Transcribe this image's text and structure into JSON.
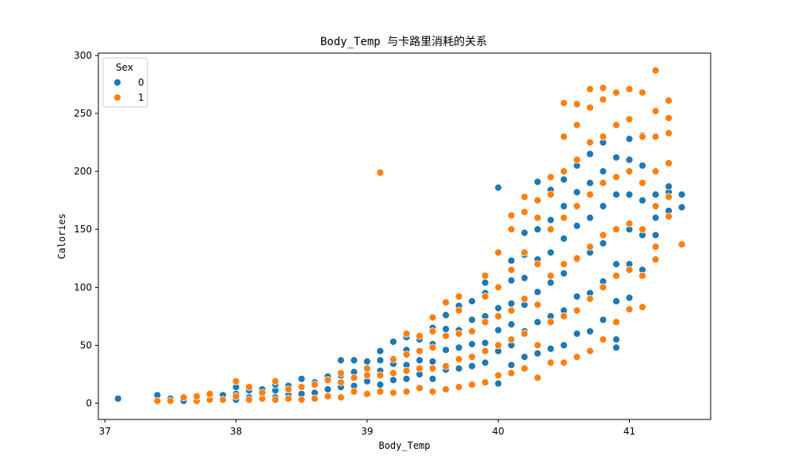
{
  "chart_data": {
    "type": "scatter",
    "title": "Body_Temp 与卡路里消耗的关系",
    "xlabel": "Body_Temp",
    "ylabel": "Calories",
    "xlim": [
      36.95,
      41.62
    ],
    "ylim": [
      -14,
      302
    ],
    "xticks": [
      "37",
      "38",
      "39",
      "40",
      "41"
    ],
    "yticks": [
      "0",
      "50",
      "100",
      "150",
      "200",
      "250",
      "300"
    ],
    "grid": false,
    "legend": {
      "title": "Sex",
      "placement": "top-left"
    },
    "series": [
      {
        "name": "0",
        "color": "#1f77b4",
        "points": [
          [
            37.1,
            4
          ],
          [
            37.4,
            7
          ],
          [
            37.5,
            4
          ],
          [
            37.6,
            2
          ],
          [
            37.7,
            6
          ],
          [
            37.8,
            4
          ],
          [
            37.9,
            7
          ],
          [
            38.0,
            3
          ],
          [
            38.0,
            8
          ],
          [
            38.0,
            14
          ],
          [
            38.1,
            5
          ],
          [
            38.1,
            11
          ],
          [
            38.2,
            6
          ],
          [
            38.2,
            12
          ],
          [
            38.3,
            5
          ],
          [
            38.3,
            11
          ],
          [
            38.3,
            16
          ],
          [
            38.4,
            7
          ],
          [
            38.4,
            15
          ],
          [
            38.5,
            8
          ],
          [
            38.5,
            21
          ],
          [
            38.6,
            9
          ],
          [
            38.6,
            18
          ],
          [
            38.7,
            12
          ],
          [
            38.7,
            23
          ],
          [
            38.8,
            14
          ],
          [
            38.8,
            24
          ],
          [
            38.8,
            37
          ],
          [
            38.9,
            15
          ],
          [
            38.9,
            27
          ],
          [
            38.9,
            37
          ],
          [
            39.0,
            19
          ],
          [
            39.0,
            29
          ],
          [
            39.0,
            36
          ],
          [
            39.1,
            16
          ],
          [
            39.1,
            28
          ],
          [
            39.1,
            37
          ],
          [
            39.1,
            45
          ],
          [
            39.2,
            20
          ],
          [
            39.2,
            34
          ],
          [
            39.2,
            53
          ],
          [
            39.3,
            21
          ],
          [
            39.3,
            33
          ],
          [
            39.3,
            46
          ],
          [
            39.3,
            57
          ],
          [
            39.4,
            25
          ],
          [
            39.4,
            37
          ],
          [
            39.4,
            55
          ],
          [
            39.5,
            21
          ],
          [
            39.5,
            36
          ],
          [
            39.5,
            51
          ],
          [
            39.5,
            65
          ],
          [
            39.6,
            29
          ],
          [
            39.6,
            46
          ],
          [
            39.6,
            64
          ],
          [
            39.6,
            76
          ],
          [
            39.7,
            30
          ],
          [
            39.7,
            48
          ],
          [
            39.7,
            63
          ],
          [
            39.7,
            84
          ],
          [
            39.8,
            32
          ],
          [
            39.8,
            51
          ],
          [
            39.8,
            72
          ],
          [
            39.8,
            88
          ],
          [
            39.9,
            35
          ],
          [
            39.9,
            52
          ],
          [
            39.9,
            75
          ],
          [
            39.9,
            95
          ],
          [
            39.9,
            104
          ],
          [
            40.0,
            17
          ],
          [
            40.0,
            45
          ],
          [
            40.0,
            63
          ],
          [
            40.0,
            82
          ],
          [
            40.0,
            186
          ],
          [
            40.1,
            33
          ],
          [
            40.1,
            50
          ],
          [
            40.1,
            68
          ],
          [
            40.1,
            86
          ],
          [
            40.1,
            106
          ],
          [
            40.1,
            123
          ],
          [
            40.2,
            40
          ],
          [
            40.2,
            62
          ],
          [
            40.2,
            85
          ],
          [
            40.2,
            108
          ],
          [
            40.2,
            128
          ],
          [
            40.2,
            147
          ],
          [
            40.3,
            43
          ],
          [
            40.3,
            70
          ],
          [
            40.3,
            96
          ],
          [
            40.3,
            124
          ],
          [
            40.3,
            150
          ],
          [
            40.3,
            191
          ],
          [
            40.4,
            47
          ],
          [
            40.4,
            75
          ],
          [
            40.4,
            104
          ],
          [
            40.4,
            130
          ],
          [
            40.4,
            158
          ],
          [
            40.4,
            184
          ],
          [
            40.5,
            50
          ],
          [
            40.5,
            80
          ],
          [
            40.5,
            112
          ],
          [
            40.5,
            142
          ],
          [
            40.5,
            170
          ],
          [
            40.5,
            193
          ],
          [
            40.6,
            60
          ],
          [
            40.6,
            92
          ],
          [
            40.6,
            124
          ],
          [
            40.6,
            153
          ],
          [
            40.6,
            182
          ],
          [
            40.6,
            205
          ],
          [
            40.7,
            62
          ],
          [
            40.7,
            95
          ],
          [
            40.7,
            130
          ],
          [
            40.7,
            160
          ],
          [
            40.7,
            190
          ],
          [
            40.7,
            215
          ],
          [
            40.8,
            72
          ],
          [
            40.8,
            105
          ],
          [
            40.8,
            138
          ],
          [
            40.8,
            170
          ],
          [
            40.8,
            200
          ],
          [
            40.8,
            225
          ],
          [
            40.9,
            48
          ],
          [
            40.9,
            55
          ],
          [
            40.9,
            88
          ],
          [
            40.9,
            120
          ],
          [
            40.9,
            150
          ],
          [
            40.9,
            180
          ],
          [
            40.9,
            212
          ],
          [
            41.0,
            91
          ],
          [
            41.0,
            120
          ],
          [
            41.0,
            150
          ],
          [
            41.0,
            180
          ],
          [
            41.0,
            210
          ],
          [
            41.0,
            228
          ],
          [
            41.1,
            115
          ],
          [
            41.1,
            145
          ],
          [
            41.1,
            175
          ],
          [
            41.1,
            205
          ],
          [
            41.1,
            231
          ],
          [
            41.2,
            145
          ],
          [
            41.2,
            160
          ],
          [
            41.2,
            180
          ],
          [
            41.2,
            200
          ],
          [
            41.3,
            166
          ],
          [
            41.3,
            182
          ],
          [
            41.3,
            187
          ],
          [
            41.4,
            169
          ],
          [
            41.4,
            180
          ]
        ]
      },
      {
        "name": "1",
        "color": "#ff7f0e",
        "points": [
          [
            37.4,
            2
          ],
          [
            37.5,
            2
          ],
          [
            37.6,
            5
          ],
          [
            37.7,
            2
          ],
          [
            37.7,
            6
          ],
          [
            37.8,
            3
          ],
          [
            37.8,
            8
          ],
          [
            37.9,
            3
          ],
          [
            38.0,
            6
          ],
          [
            38.0,
            19
          ],
          [
            38.1,
            3
          ],
          [
            38.1,
            14
          ],
          [
            38.2,
            4
          ],
          [
            38.2,
            9
          ],
          [
            38.3,
            3
          ],
          [
            38.3,
            19
          ],
          [
            38.4,
            4
          ],
          [
            38.4,
            12
          ],
          [
            38.5,
            3
          ],
          [
            38.5,
            14
          ],
          [
            38.6,
            4
          ],
          [
            38.6,
            16
          ],
          [
            38.7,
            6
          ],
          [
            38.7,
            20
          ],
          [
            38.8,
            5
          ],
          [
            38.8,
            18
          ],
          [
            38.8,
            26
          ],
          [
            38.9,
            10
          ],
          [
            38.9,
            22
          ],
          [
            39.0,
            8
          ],
          [
            39.0,
            24
          ],
          [
            39.0,
            30
          ],
          [
            39.1,
            10
          ],
          [
            39.1,
            24
          ],
          [
            39.1,
            199
          ],
          [
            39.2,
            9
          ],
          [
            39.2,
            26
          ],
          [
            39.2,
            38
          ],
          [
            39.3,
            10
          ],
          [
            39.3,
            28
          ],
          [
            39.3,
            42
          ],
          [
            39.3,
            60
          ],
          [
            39.4,
            13
          ],
          [
            39.4,
            30
          ],
          [
            39.4,
            45
          ],
          [
            39.4,
            58
          ],
          [
            39.5,
            10
          ],
          [
            39.5,
            30
          ],
          [
            39.5,
            48
          ],
          [
            39.5,
            62
          ],
          [
            39.5,
            74
          ],
          [
            39.6,
            12
          ],
          [
            39.6,
            32
          ],
          [
            39.6,
            58
          ],
          [
            39.6,
            87
          ],
          [
            39.7,
            14
          ],
          [
            39.7,
            38
          ],
          [
            39.7,
            60
          ],
          [
            39.7,
            80
          ],
          [
            39.7,
            92
          ],
          [
            39.8,
            16
          ],
          [
            39.8,
            40
          ],
          [
            39.8,
            62
          ],
          [
            39.9,
            18
          ],
          [
            39.9,
            45
          ],
          [
            39.9,
            70
          ],
          [
            39.9,
            92
          ],
          [
            39.9,
            110
          ],
          [
            40.0,
            24
          ],
          [
            40.0,
            50
          ],
          [
            40.0,
            75
          ],
          [
            40.0,
            100
          ],
          [
            40.0,
            130
          ],
          [
            40.1,
            26
          ],
          [
            40.1,
            55
          ],
          [
            40.1,
            80
          ],
          [
            40.1,
            115
          ],
          [
            40.1,
            150
          ],
          [
            40.1,
            162
          ],
          [
            40.2,
            30
          ],
          [
            40.2,
            60
          ],
          [
            40.2,
            90
          ],
          [
            40.2,
            130
          ],
          [
            40.2,
            165
          ],
          [
            40.2,
            178
          ],
          [
            40.3,
            22
          ],
          [
            40.3,
            50
          ],
          [
            40.3,
            85
          ],
          [
            40.3,
            120
          ],
          [
            40.3,
            160
          ],
          [
            40.3,
            175
          ],
          [
            40.4,
            35
          ],
          [
            40.4,
            70
          ],
          [
            40.4,
            110
          ],
          [
            40.4,
            150
          ],
          [
            40.4,
            180
          ],
          [
            40.4,
            195
          ],
          [
            40.5,
            35
          ],
          [
            40.5,
            75
          ],
          [
            40.5,
            120
          ],
          [
            40.5,
            160
          ],
          [
            40.5,
            200
          ],
          [
            40.5,
            230
          ],
          [
            40.5,
            259
          ],
          [
            40.6,
            40
          ],
          [
            40.6,
            80
          ],
          [
            40.6,
            125
          ],
          [
            40.6,
            170
          ],
          [
            40.6,
            210
          ],
          [
            40.6,
            240
          ],
          [
            40.6,
            258
          ],
          [
            40.7,
            45
          ],
          [
            40.7,
            90
          ],
          [
            40.7,
            135
          ],
          [
            40.7,
            180
          ],
          [
            40.7,
            225
          ],
          [
            40.7,
            255
          ],
          [
            40.7,
            271
          ],
          [
            40.8,
            55
          ],
          [
            40.8,
            100
          ],
          [
            40.8,
            145
          ],
          [
            40.8,
            190
          ],
          [
            40.8,
            230
          ],
          [
            40.8,
            262
          ],
          [
            40.8,
            272
          ],
          [
            40.9,
            70
          ],
          [
            40.9,
            110
          ],
          [
            40.9,
            150
          ],
          [
            40.9,
            195
          ],
          [
            40.9,
            240
          ],
          [
            40.9,
            268
          ],
          [
            41.0,
            81
          ],
          [
            41.0,
            115
          ],
          [
            41.0,
            155
          ],
          [
            41.0,
            200
          ],
          [
            41.0,
            245
          ],
          [
            41.0,
            271
          ],
          [
            41.1,
            83
          ],
          [
            41.1,
            110
          ],
          [
            41.1,
            150
          ],
          [
            41.1,
            190
          ],
          [
            41.1,
            230
          ],
          [
            41.1,
            268
          ],
          [
            41.2,
            124
          ],
          [
            41.2,
            135
          ],
          [
            41.2,
            170
          ],
          [
            41.2,
            200
          ],
          [
            41.2,
            230
          ],
          [
            41.2,
            252
          ],
          [
            41.2,
            287
          ],
          [
            41.3,
            161
          ],
          [
            41.3,
            178
          ],
          [
            41.3,
            207
          ],
          [
            41.3,
            233
          ],
          [
            41.3,
            246
          ],
          [
            41.3,
            261
          ],
          [
            41.4,
            137
          ]
        ]
      }
    ]
  }
}
